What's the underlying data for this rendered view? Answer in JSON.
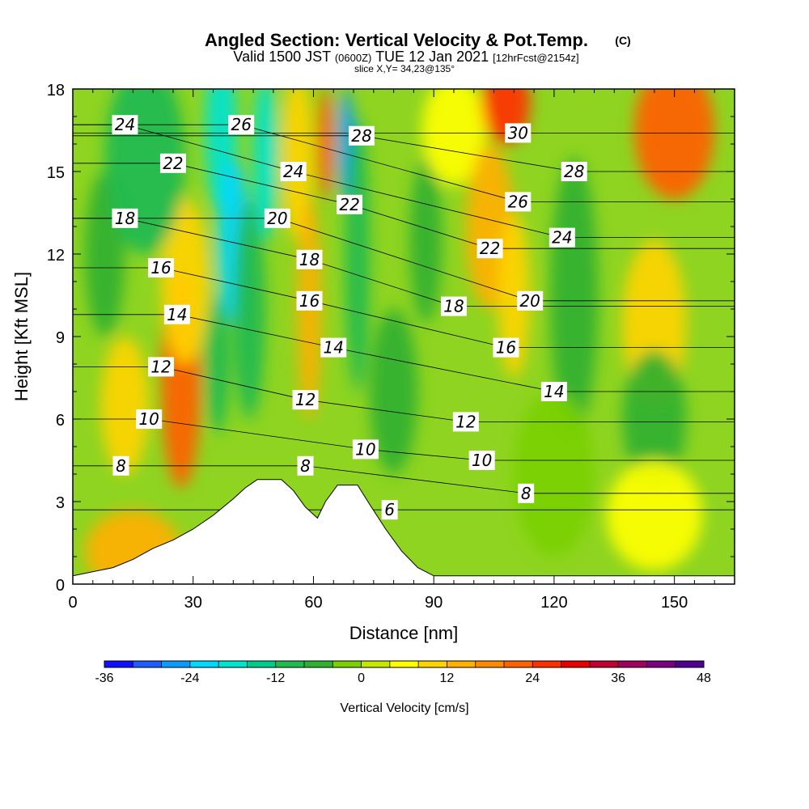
{
  "header": {
    "title_main": "Angled Section: Vertical Velocity & Pot.Temp.",
    "title_tag": "(C)",
    "line2_a": "Valid 1500 JST",
    "line2_b": "(0600Z)",
    "line2_c": "TUE 12 Jan 2021",
    "line2_d": "[12hrFcst@2154z]",
    "line3": "slice X,Y= 34,23@135°"
  },
  "chart_data": {
    "type": "heatmap",
    "title": "Angled Section: Vertical Velocity & Pot.Temp.",
    "xlabel": "Distance [nm]",
    "ylabel": "Height [Kft MSL]",
    "xlim": [
      0,
      165
    ],
    "ylim": [
      0,
      18
    ],
    "x_ticks": [
      "0",
      "30",
      "60",
      "90",
      "120",
      "150"
    ],
    "x_tick_values": [
      0,
      30,
      60,
      90,
      120,
      150
    ],
    "y_ticks": [
      "0",
      "3",
      "6",
      "9",
      "12",
      "15",
      "18"
    ],
    "y_tick_values": [
      0,
      3,
      6,
      9,
      12,
      15,
      18
    ],
    "colorbar": {
      "label": "Vertical Velocity [cm/s]",
      "min": -36,
      "max": 48,
      "step": 4,
      "tick_labels": [
        "-36",
        "-24",
        "-12",
        "0",
        "12",
        "24",
        "36",
        "48"
      ],
      "tick_values": [
        -36,
        -24,
        -12,
        0,
        12,
        24,
        36,
        48
      ],
      "colors": [
        "#1010ff",
        "#1f5cff",
        "#0a9bff",
        "#00d8ff",
        "#00e3d0",
        "#00cc8a",
        "#1fba50",
        "#30b030",
        "#7ad000",
        "#c6e800",
        "#ffff00",
        "#ffd400",
        "#ffb000",
        "#ff8a00",
        "#ff6000",
        "#ff3000",
        "#e80000",
        "#c00030",
        "#a00060",
        "#7a0080",
        "#500090"
      ]
    },
    "terrain_profile": [
      [
        0,
        0.3
      ],
      [
        10,
        0.6
      ],
      [
        15,
        0.9
      ],
      [
        20,
        1.3
      ],
      [
        25,
        1.6
      ],
      [
        30,
        2.0
      ],
      [
        35,
        2.5
      ],
      [
        40,
        3.1
      ],
      [
        43,
        3.5
      ],
      [
        46,
        3.8
      ],
      [
        52,
        3.8
      ],
      [
        55,
        3.4
      ],
      [
        58,
        2.8
      ],
      [
        61,
        2.4
      ],
      [
        63,
        3.0
      ],
      [
        66,
        3.6
      ],
      [
        71,
        3.6
      ],
      [
        74,
        2.9
      ],
      [
        78,
        2.0
      ],
      [
        82,
        1.2
      ],
      [
        86,
        0.6
      ],
      [
        90,
        0.3
      ],
      [
        165,
        0.3
      ]
    ],
    "velocity_anomalies": [
      {
        "x": 15,
        "y": 1.2,
        "rx": 12,
        "ry": 1.5,
        "w": 12
      },
      {
        "x": 13,
        "y": 6.5,
        "rx": 6,
        "ry": 2.5,
        "w": 10
      },
      {
        "x": 27,
        "y": 7.5,
        "rx": 5,
        "ry": 4.0,
        "w": 20
      },
      {
        "x": 28,
        "y": 11.0,
        "rx": 6,
        "ry": 3.0,
        "w": 8
      },
      {
        "x": 8,
        "y": 12.0,
        "rx": 5,
        "ry": 3.0,
        "w": -8
      },
      {
        "x": 18,
        "y": 15.5,
        "rx": 10,
        "ry": 3.5,
        "w": -12
      },
      {
        "x": 37,
        "y": 16.5,
        "rx": 4,
        "ry": 3.0,
        "w": -20
      },
      {
        "x": 40,
        "y": 12.5,
        "rx": 4,
        "ry": 3.0,
        "w": -22
      },
      {
        "x": 36,
        "y": 8.0,
        "rx": 3,
        "ry": 2.5,
        "w": -10
      },
      {
        "x": 48,
        "y": 15.5,
        "rx": 3,
        "ry": 3.0,
        "w": -20
      },
      {
        "x": 44,
        "y": 10.0,
        "rx": 4,
        "ry": 4.0,
        "w": -10
      },
      {
        "x": 56,
        "y": 15.5,
        "rx": 4,
        "ry": 3.0,
        "w": 8
      },
      {
        "x": 59,
        "y": 10.0,
        "rx": 3,
        "ry": 4.0,
        "w": 14
      },
      {
        "x": 63,
        "y": 16.0,
        "rx": 2,
        "ry": 2.0,
        "w": 20
      },
      {
        "x": 68,
        "y": 16.0,
        "rx": 2,
        "ry": 2.0,
        "w": -28
      },
      {
        "x": 71,
        "y": 12.0,
        "rx": 3,
        "ry": 5.0,
        "w": -10
      },
      {
        "x": 80,
        "y": 7.0,
        "rx": 6,
        "ry": 3.0,
        "w": -6
      },
      {
        "x": 88,
        "y": 12.5,
        "rx": 4,
        "ry": 3.0,
        "w": -6
      },
      {
        "x": 95,
        "y": 16.5,
        "rx": 8,
        "ry": 2.0,
        "w": 4
      },
      {
        "x": 104,
        "y": 13.0,
        "rx": 6,
        "ry": 3.0,
        "w": 12
      },
      {
        "x": 108,
        "y": 17.5,
        "rx": 6,
        "ry": 1.5,
        "w": 24
      },
      {
        "x": 110,
        "y": 10.5,
        "rx": 4,
        "ry": 3.0,
        "w": 8
      },
      {
        "x": 125,
        "y": 10.5,
        "rx": 6,
        "ry": 5.0,
        "w": -8
      },
      {
        "x": 150,
        "y": 16.5,
        "rx": 10,
        "ry": 2.5,
        "w": 20
      },
      {
        "x": 145,
        "y": 9.5,
        "rx": 8,
        "ry": 3.0,
        "w": 8
      },
      {
        "x": 145,
        "y": 6.0,
        "rx": 8,
        "ry": 2.5,
        "w": -6
      },
      {
        "x": 120,
        "y": 4.0,
        "rx": 10,
        "ry": 3.0,
        "w": -4
      },
      {
        "x": 145,
        "y": 2.5,
        "rx": 12,
        "ry": 2.0,
        "w": 6
      }
    ],
    "theta_contour_labels": [
      {
        "text": "24",
        "x": 13,
        "y": 16.7
      },
      {
        "text": "26",
        "x": 42,
        "y": 16.7
      },
      {
        "text": "28",
        "x": 72,
        "y": 16.3
      },
      {
        "text": "30",
        "x": 111,
        "y": 16.4
      },
      {
        "text": "22",
        "x": 25,
        "y": 15.3
      },
      {
        "text": "24",
        "x": 55,
        "y": 15.0
      },
      {
        "text": "28",
        "x": 125,
        "y": 15.0
      },
      {
        "text": "26",
        "x": 111,
        "y": 13.9
      },
      {
        "text": "22",
        "x": 69,
        "y": 13.8
      },
      {
        "text": "20",
        "x": 51,
        "y": 13.3
      },
      {
        "text": "18",
        "x": 13,
        "y": 13.3
      },
      {
        "text": "24",
        "x": 122,
        "y": 12.6
      },
      {
        "text": "22",
        "x": 104,
        "y": 12.2
      },
      {
        "text": "18",
        "x": 59,
        "y": 11.8
      },
      {
        "text": "16",
        "x": 22,
        "y": 11.5
      },
      {
        "text": "16",
        "x": 59,
        "y": 10.3
      },
      {
        "text": "20",
        "x": 114,
        "y": 10.3
      },
      {
        "text": "18",
        "x": 95,
        "y": 10.1
      },
      {
        "text": "14",
        "x": 26,
        "y": 9.8
      },
      {
        "text": "14",
        "x": 65,
        "y": 8.6
      },
      {
        "text": "16",
        "x": 108,
        "y": 8.6
      },
      {
        "text": "12",
        "x": 22,
        "y": 7.9
      },
      {
        "text": "14",
        "x": 120,
        "y": 7.0
      },
      {
        "text": "12",
        "x": 58,
        "y": 6.7
      },
      {
        "text": "10",
        "x": 19,
        "y": 6.0
      },
      {
        "text": "12",
        "x": 98,
        "y": 5.9
      },
      {
        "text": "10",
        "x": 73,
        "y": 4.9
      },
      {
        "text": "10",
        "x": 102,
        "y": 4.5
      },
      {
        "text": "8",
        "x": 12,
        "y": 4.3
      },
      {
        "text": "8",
        "x": 58,
        "y": 4.3
      },
      {
        "text": "8",
        "x": 113,
        "y": 3.3
      },
      {
        "text": "6",
        "x": 79,
        "y": 2.7
      }
    ]
  }
}
